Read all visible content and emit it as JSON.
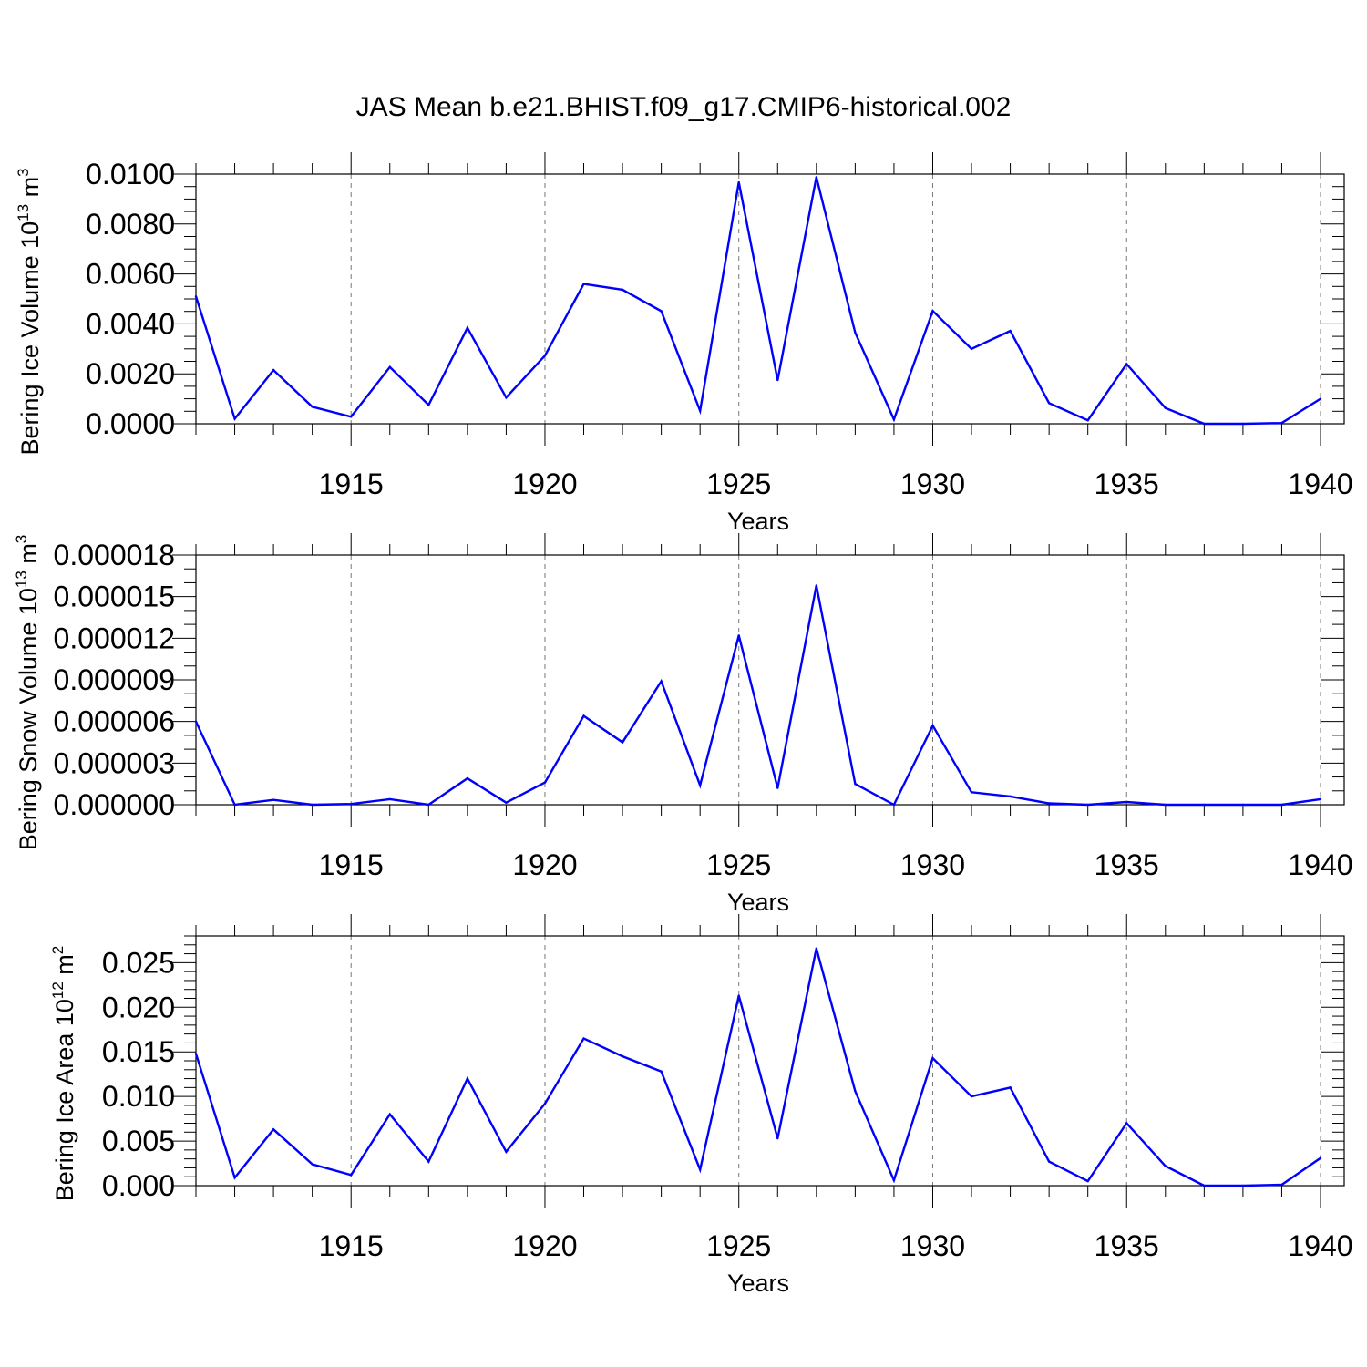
{
  "figure": {
    "title": "JAS Mean b.e21.BHIST.f09_g17.CMIP6-historical.002",
    "line_color": "#0000ff",
    "grid_color": "#777777"
  },
  "chart_data": [
    {
      "type": "line",
      "ylabel": {
        "main": "Bering Ice Volume 10",
        "sup": "13",
        "unit": " m",
        "unit_sup": "3"
      },
      "xlabel": "Years",
      "xlim": [
        1911,
        1940
      ],
      "ylim": [
        0,
        0.01
      ],
      "xticks": [
        1915,
        1920,
        1925,
        1930,
        1935,
        1940
      ],
      "xtick_labels": [
        "1915",
        "1920",
        "1925",
        "1930",
        "1935",
        "1940"
      ],
      "yticks": [
        0,
        0.002,
        0.004,
        0.006,
        0.008,
        0.01
      ],
      "ytick_labels": [
        "0.0000",
        "0.0020",
        "0.0040",
        "0.0060",
        "0.0080",
        "0.0100"
      ],
      "y_minor_step": 0.0005,
      "x": [
        1911,
        1912,
        1913,
        1914,
        1915,
        1916,
        1917,
        1918,
        1919,
        1920,
        1921,
        1922,
        1923,
        1924,
        1925,
        1926,
        1927,
        1928,
        1929,
        1930,
        1931,
        1932,
        1933,
        1934,
        1935,
        1936,
        1937,
        1938,
        1939,
        1940
      ],
      "values": [
        0.0051,
        0.0002,
        0.00215,
        0.00068,
        0.00028,
        0.00227,
        0.00075,
        0.00384,
        0.00105,
        0.00273,
        0.0056,
        0.00537,
        0.00451,
        0.00052,
        0.00967,
        0.00175,
        0.00988,
        0.00365,
        0.00017,
        0.00452,
        0.003,
        0.00372,
        0.00083,
        0.00014,
        0.00239,
        0.00063,
        0.0,
        0.0,
        3e-05,
        0.001
      ]
    },
    {
      "type": "line",
      "ylabel": {
        "main": "Bering Snow Volume 10",
        "sup": "13",
        "unit": " m",
        "unit_sup": "3"
      },
      "xlabel": "Years",
      "xlim": [
        1911,
        1940
      ],
      "ylim": [
        0,
        1.8e-05
      ],
      "xticks": [
        1915,
        1920,
        1925,
        1930,
        1935,
        1940
      ],
      "xtick_labels": [
        "1915",
        "1920",
        "1925",
        "1930",
        "1935",
        "1940"
      ],
      "yticks": [
        0,
        3e-06,
        6e-06,
        9e-06,
        1.2e-05,
        1.5e-05,
        1.8e-05
      ],
      "ytick_labels": [
        "0.000000",
        "0.000003",
        "0.000006",
        "0.000009",
        "0.000012",
        "0.000015",
        "0.000018"
      ],
      "y_minor_step": 1e-06,
      "x": [
        1911,
        1912,
        1913,
        1914,
        1915,
        1916,
        1917,
        1918,
        1919,
        1920,
        1921,
        1922,
        1923,
        1924,
        1925,
        1926,
        1927,
        1928,
        1929,
        1930,
        1931,
        1932,
        1933,
        1934,
        1935,
        1936,
        1937,
        1938,
        1939,
        1940
      ],
      "values": [
        6e-06,
        0.0,
        3.5e-07,
        0.0,
        5e-08,
        4e-07,
        0.0,
        1.9e-06,
        1.5e-07,
        1.6e-06,
        6.4e-06,
        4.5e-06,
        8.9e-06,
        1.4e-06,
        1.22e-05,
        1.2e-06,
        1.58e-05,
        1.5e-06,
        0.0,
        5.7e-06,
        9e-07,
        6e-07,
        1e-07,
        0.0,
        2e-07,
        0.0,
        0.0,
        0.0,
        0.0,
        4e-07
      ]
    },
    {
      "type": "line",
      "ylabel": {
        "main": "Bering Ice Area 10",
        "sup": "12",
        "unit": " m",
        "unit_sup": "2"
      },
      "xlabel": "Years",
      "xlim": [
        1911,
        1940
      ],
      "ylim": [
        0,
        0.028
      ],
      "xticks": [
        1915,
        1920,
        1925,
        1930,
        1935,
        1940
      ],
      "xtick_labels": [
        "1915",
        "1920",
        "1925",
        "1930",
        "1935",
        "1940"
      ],
      "yticks": [
        0,
        0.005,
        0.01,
        0.015,
        0.02,
        0.025
      ],
      "ytick_labels": [
        "0.000",
        "0.005",
        "0.010",
        "0.015",
        "0.020",
        "0.025"
      ],
      "y_minor_step": 0.001,
      "x": [
        1911,
        1912,
        1913,
        1914,
        1915,
        1916,
        1917,
        1918,
        1919,
        1920,
        1921,
        1922,
        1923,
        1924,
        1925,
        1926,
        1927,
        1928,
        1929,
        1930,
        1931,
        1932,
        1933,
        1934,
        1935,
        1936,
        1937,
        1938,
        1939,
        1940
      ],
      "values": [
        0.0148,
        0.0009,
        0.0063,
        0.0024,
        0.0012,
        0.008,
        0.0027,
        0.012,
        0.0038,
        0.0092,
        0.0165,
        0.0145,
        0.0128,
        0.0018,
        0.0213,
        0.0053,
        0.0266,
        0.0106,
        0.0006,
        0.0143,
        0.01,
        0.011,
        0.0027,
        0.0005,
        0.007,
        0.0022,
        0.0,
        0.0,
        0.0001,
        0.0031
      ]
    }
  ]
}
